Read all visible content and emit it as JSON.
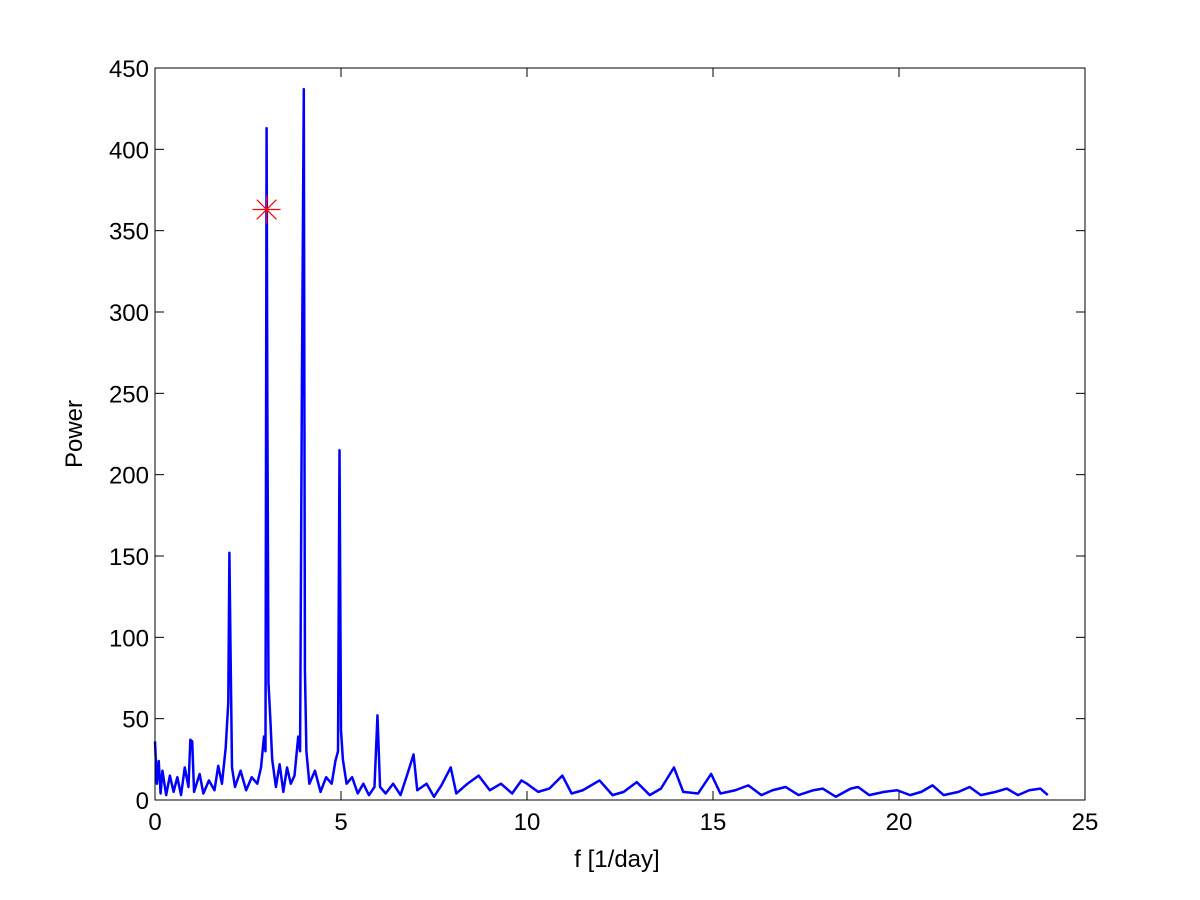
{
  "chart_data": {
    "type": "line",
    "xlabel": "f [1/day]",
    "ylabel": "Power",
    "xlim": [
      0,
      25
    ],
    "xticks": [
      0,
      5,
      10,
      15,
      20,
      25
    ],
    "ylim": [
      0,
      450
    ],
    "yticks": [
      0,
      50,
      100,
      150,
      200,
      250,
      300,
      350,
      400,
      450
    ],
    "grid": false,
    "series": [
      {
        "color": "#0000ff",
        "x": [
          0,
          0.05,
          0.1,
          0.15,
          0.2,
          0.3,
          0.4,
          0.5,
          0.6,
          0.7,
          0.8,
          0.9,
          0.95,
          1.0,
          1.05,
          1.2,
          1.3,
          1.45,
          1.6,
          1.7,
          1.8,
          1.9,
          1.97,
          2.0,
          2.03,
          2.07,
          2.15,
          2.3,
          2.45,
          2.6,
          2.75,
          2.85,
          2.93,
          2.97,
          3.0,
          3.02,
          3.05,
          3.1,
          3.15,
          3.25,
          3.35,
          3.45,
          3.55,
          3.65,
          3.75,
          3.85,
          3.9,
          3.95,
          4.0,
          4.03,
          4.07,
          4.15,
          4.3,
          4.45,
          4.6,
          4.75,
          4.85,
          4.92,
          4.96,
          5.0,
          5.05,
          5.15,
          5.3,
          5.45,
          5.6,
          5.75,
          5.9,
          5.98,
          6.05,
          6.2,
          6.4,
          6.6,
          6.8,
          6.95,
          7.05,
          7.3,
          7.5,
          7.7,
          7.95,
          8.1,
          8.4,
          8.7,
          9.0,
          9.3,
          9.6,
          9.85,
          10.0,
          10.3,
          10.6,
          10.95,
          11.2,
          11.5,
          11.95,
          12.3,
          12.6,
          12.95,
          13.3,
          13.6,
          13.95,
          14.2,
          14.6,
          14.95,
          15.2,
          15.6,
          15.95,
          16.3,
          16.6,
          16.95,
          17.3,
          17.7,
          17.95,
          18.3,
          18.7,
          18.9,
          19.2,
          19.6,
          19.95,
          20.3,
          20.6,
          20.9,
          21.2,
          21.6,
          21.9,
          22.2,
          22.6,
          22.9,
          23.2,
          23.5,
          23.8,
          24.0
        ],
        "values": [
          36,
          10,
          24,
          4,
          18,
          3,
          15,
          5,
          14,
          3,
          20,
          8,
          37,
          36,
          5,
          16,
          4,
          12,
          6,
          21,
          10,
          32,
          60,
          152,
          93,
          20,
          8,
          18,
          6,
          14,
          10,
          20,
          39,
          30,
          413,
          245,
          72,
          50,
          25,
          8,
          22,
          5,
          20,
          10,
          15,
          39,
          30,
          258,
          437,
          80,
          30,
          10,
          18,
          5,
          14,
          10,
          24,
          30,
          215,
          43,
          25,
          10,
          14,
          4,
          10,
          3,
          8,
          52,
          8,
          4,
          10,
          3,
          17,
          28,
          6,
          10,
          2,
          9,
          20,
          4,
          10,
          15,
          6,
          10,
          4,
          12,
          10,
          5,
          7,
          15,
          4,
          6,
          12,
          3,
          5,
          11,
          3,
          7,
          20,
          5,
          4,
          16,
          4,
          6,
          9,
          3,
          6,
          8,
          3,
          6,
          7,
          2,
          7,
          8,
          3,
          5,
          6,
          3,
          5,
          9,
          3,
          5,
          8,
          3,
          5,
          7,
          3,
          6,
          7,
          3
        ]
      },
      {
        "color": "#ff0000",
        "marker": "star",
        "x": [
          3.0
        ],
        "values": [
          363
        ]
      }
    ]
  }
}
